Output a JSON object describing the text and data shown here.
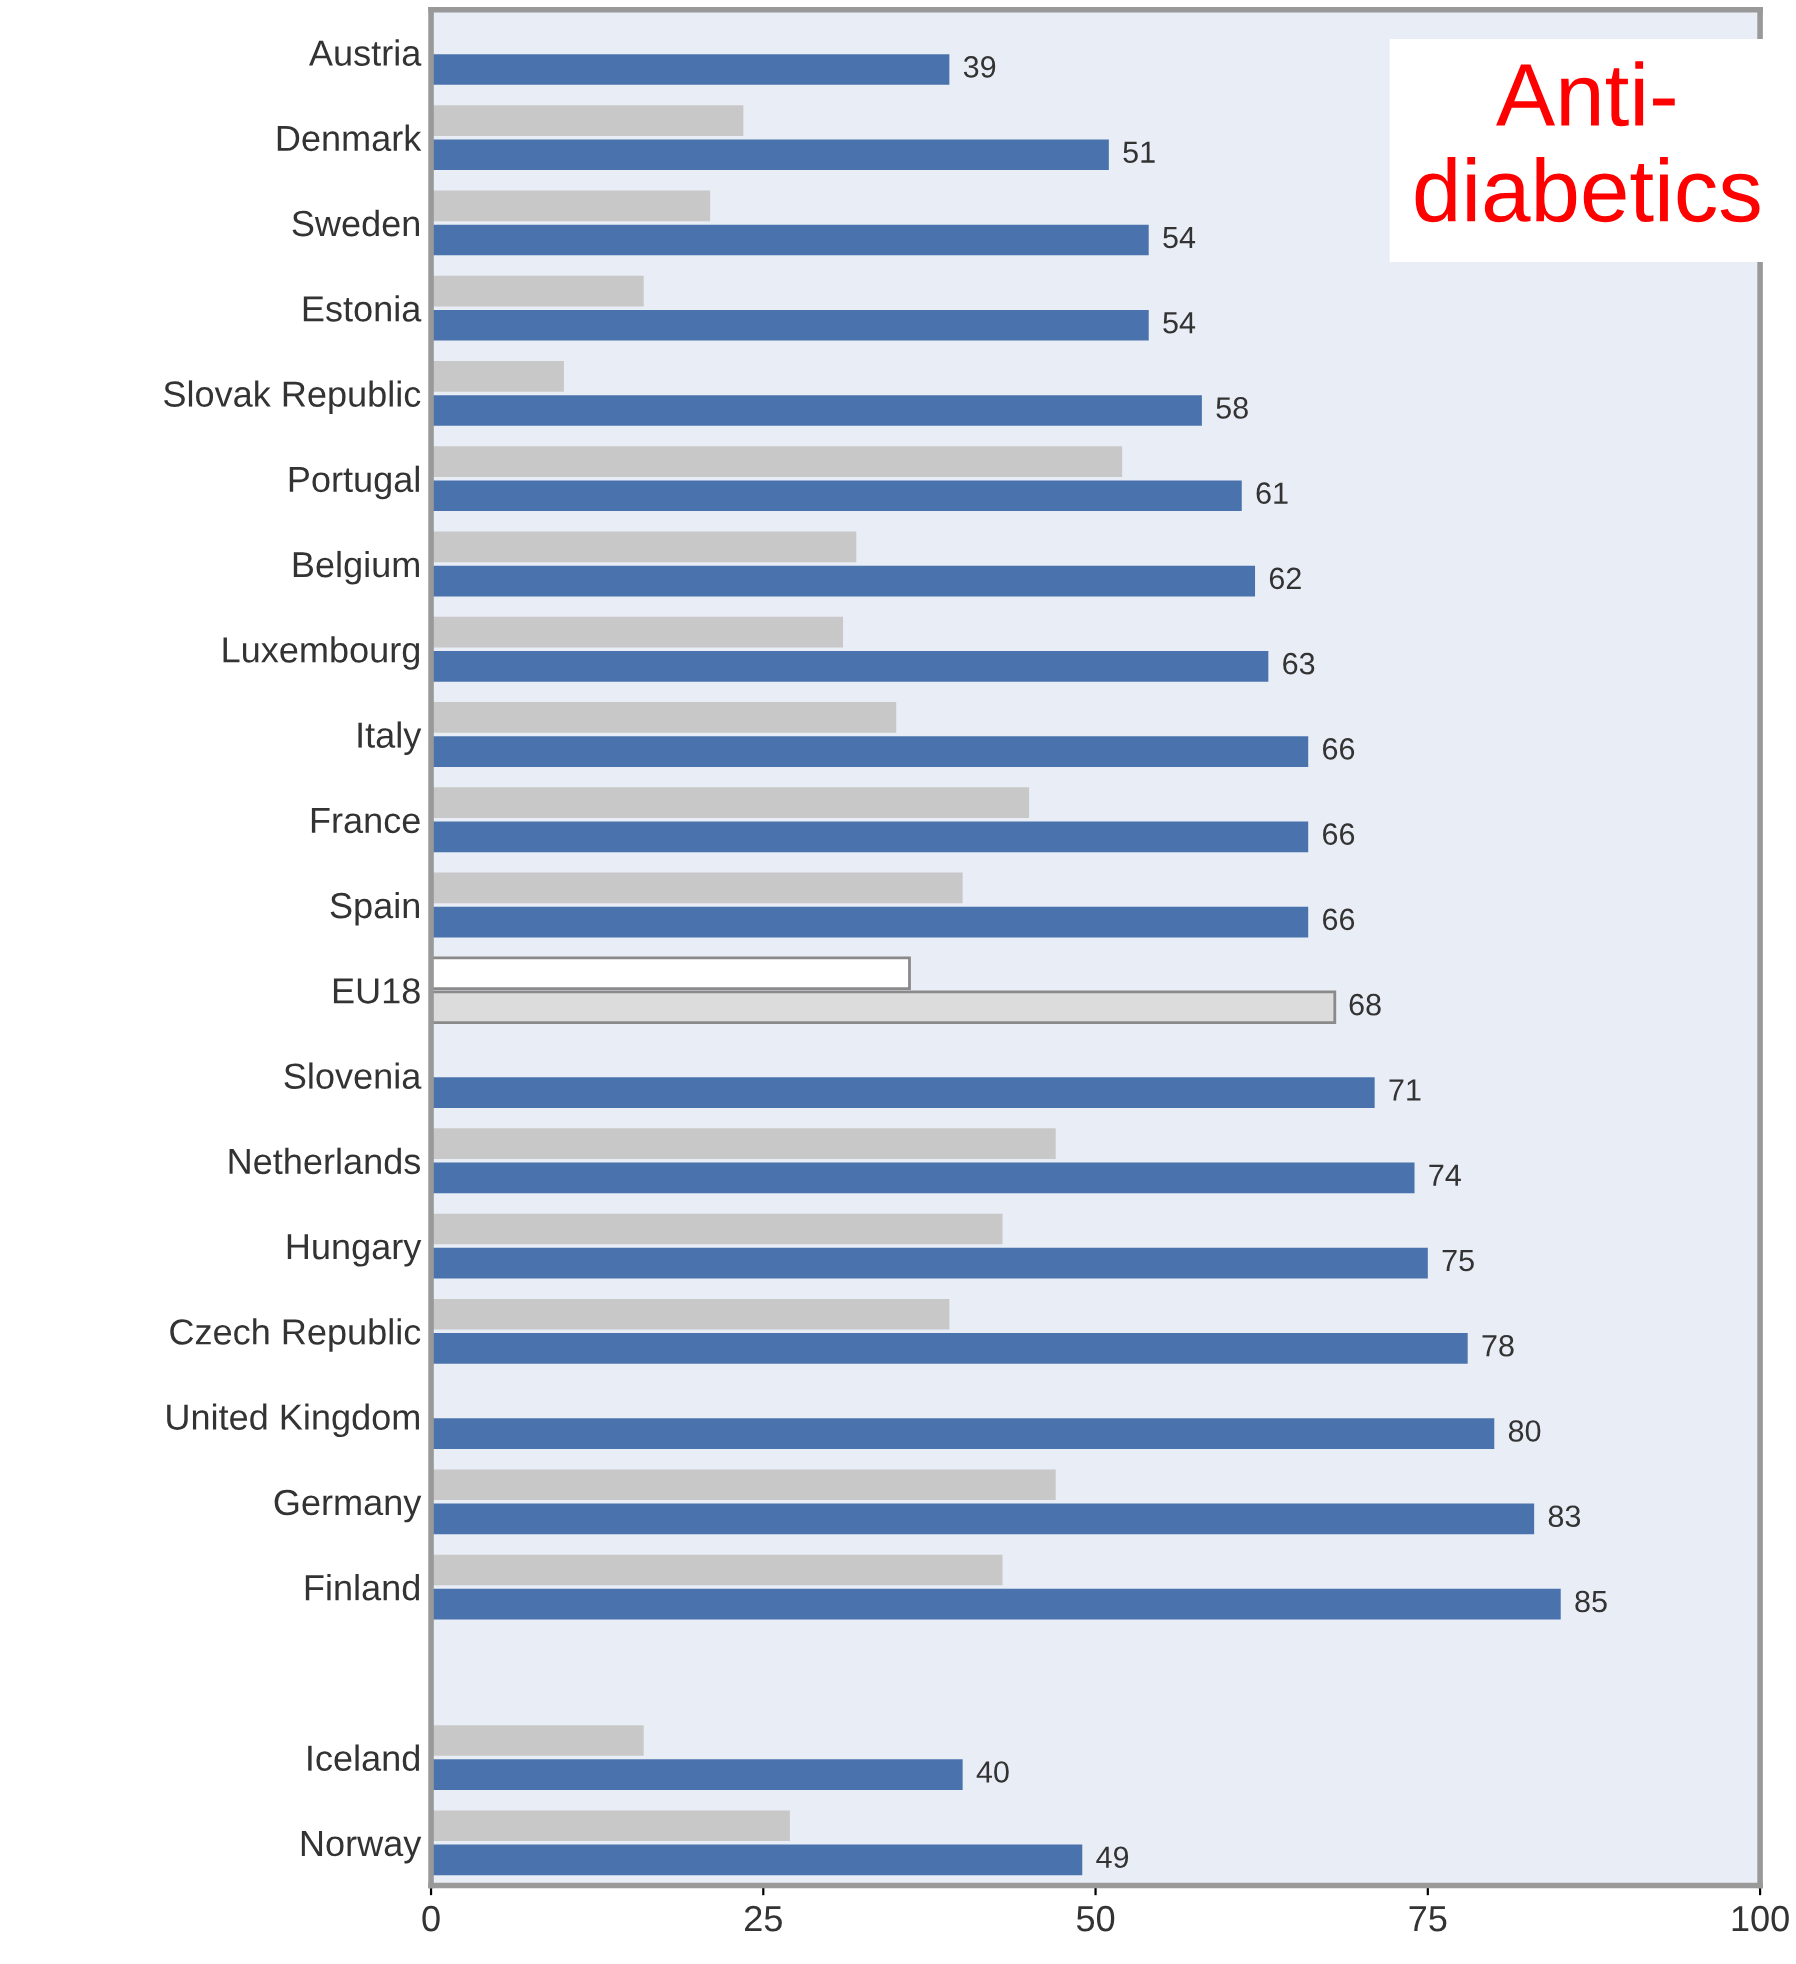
{
  "chart_data": {
    "type": "bar",
    "orientation": "horizontal",
    "categories": [
      "Austria",
      "Denmark",
      "Sweden",
      "Estonia",
      "Slovak Republic",
      "Portugal",
      "Belgium",
      "Luxembourg",
      "Italy",
      "France",
      "Spain",
      "EU18",
      "Slovenia",
      "Netherlands",
      "Hungary",
      "Czech Republic",
      "United Kingdom",
      "Germany",
      "Finland",
      null,
      "Iceland",
      "Norway"
    ],
    "series": [
      {
        "color": "#c8c8c8",
        "colors": [
          "#c8c8c8",
          "#c8c8c8",
          "#c8c8c8",
          "#c8c8c8",
          "#c8c8c8",
          "#c8c8c8",
          "#c8c8c8",
          "#c8c8c8",
          "#c8c8c8",
          "#c8c8c8",
          "#c8c8c8",
          "#ffffff",
          "#c8c8c8",
          "#c8c8c8",
          "#c8c8c8",
          "#c8c8c8",
          "#c8c8c8",
          "#c8c8c8",
          "#c8c8c8",
          "#c8c8c8",
          "#c8c8c8",
          "#c8c8c8"
        ],
        "values": [
          null,
          23.5,
          21,
          16,
          10,
          52,
          32,
          31,
          35,
          45,
          40,
          36,
          null,
          47,
          43,
          39,
          null,
          47,
          43,
          null,
          16,
          27
        ]
      },
      {
        "color": "#4a73ad",
        "colors": [
          "#4a73ad",
          "#4a73ad",
          "#4a73ad",
          "#4a73ad",
          "#4a73ad",
          "#4a73ad",
          "#4a73ad",
          "#4a73ad",
          "#4a73ad",
          "#4a73ad",
          "#4a73ad",
          "#dcdcdc",
          "#4a73ad",
          "#4a73ad",
          "#4a73ad",
          "#4a73ad",
          "#4a73ad",
          "#4a73ad",
          "#4a73ad",
          "#4a73ad",
          "#4a73ad",
          "#4a73ad"
        ],
        "values": [
          39,
          51,
          54,
          54,
          58,
          61,
          62,
          63,
          66,
          66,
          66,
          68,
          71,
          74,
          75,
          78,
          80,
          83,
          85,
          null,
          40,
          49
        ],
        "data_labels": true
      }
    ],
    "xlim": [
      0,
      100
    ],
    "xticks": [
      0,
      25,
      50,
      75,
      100
    ],
    "grid": false,
    "legend": false,
    "annotations": [
      "Anti-\ndiabetics"
    ]
  }
}
